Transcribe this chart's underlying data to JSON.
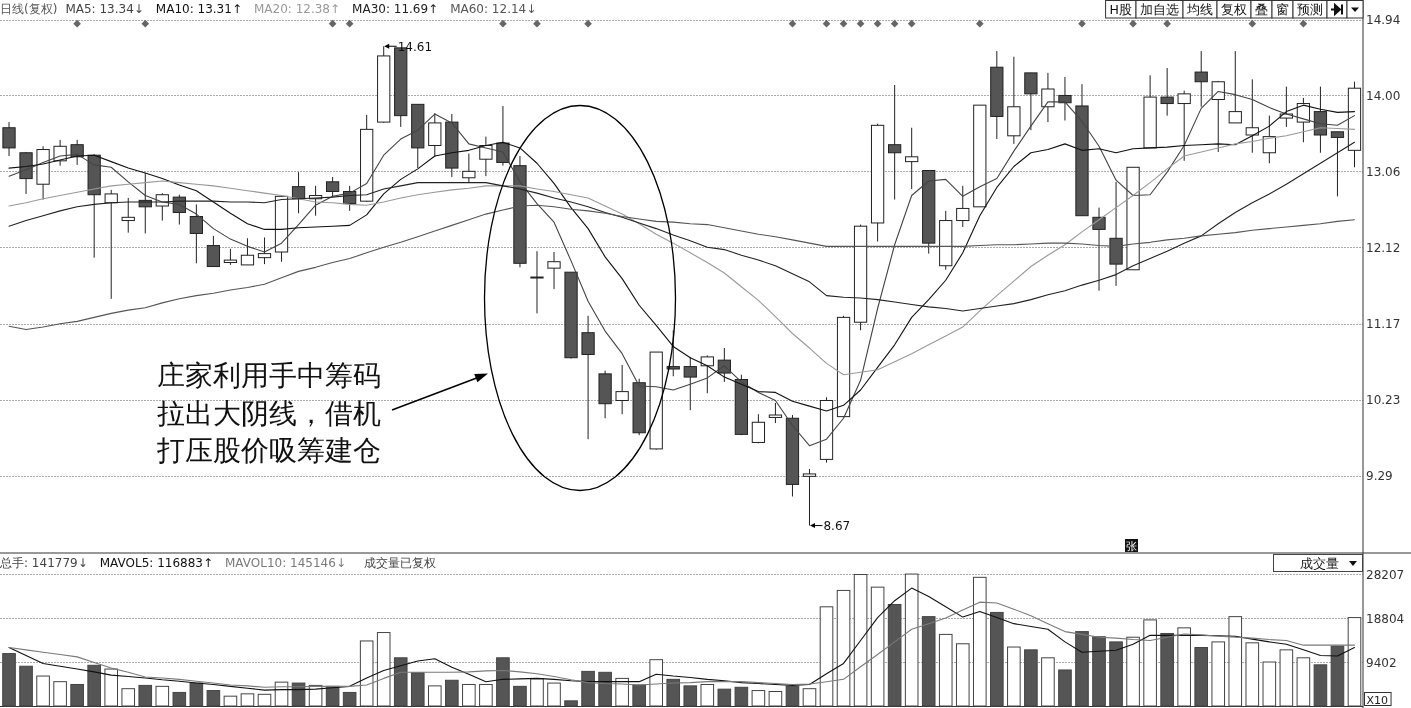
{
  "chart_data": [
    {
      "type": "candlestick",
      "title": "日线(复权)",
      "categories": [
        null,
        null,
        null,
        null,
        null,
        null,
        null,
        null,
        null,
        null,
        null,
        null,
        null,
        null,
        null,
        null,
        null,
        null,
        null,
        null,
        null,
        null,
        null,
        null,
        null,
        null,
        null,
        null,
        null,
        null,
        null,
        null,
        null,
        null,
        null,
        null,
        null,
        null,
        null,
        null,
        null,
        null,
        null,
        null,
        null,
        null,
        null,
        null,
        null,
        null,
        null,
        null,
        null,
        null,
        null,
        null,
        null,
        null,
        null,
        null,
        null,
        null,
        null,
        null,
        null,
        null,
        null,
        null,
        null,
        null,
        null,
        null,
        null,
        null,
        null,
        null,
        null,
        null,
        null,
        null
      ],
      "ohlc": [
        [
          13.6,
          13.67,
          13.25,
          13.35
        ],
        [
          13.29,
          13.3,
          12.78,
          12.97
        ],
        [
          12.9,
          13.37,
          12.71,
          13.33
        ],
        [
          13.19,
          13.45,
          13.13,
          13.37
        ],
        [
          13.39,
          13.45,
          13.14,
          13.24
        ],
        [
          13.26,
          13.27,
          11.99,
          12.77
        ],
        [
          12.67,
          12.83,
          11.48,
          12.78
        ],
        [
          12.45,
          12.73,
          12.3,
          12.49
        ],
        [
          12.7,
          13.04,
          12.29,
          12.62
        ],
        [
          12.63,
          12.79,
          12.45,
          12.77
        ],
        [
          12.74,
          12.77,
          12.4,
          12.55
        ],
        [
          12.5,
          12.65,
          11.92,
          12.29
        ],
        [
          12.14,
          12.26,
          11.88,
          11.88
        ],
        [
          11.93,
          12.1,
          11.9,
          11.96
        ],
        [
          11.9,
          12.23,
          11.9,
          12.02
        ],
        [
          11.99,
          12.24,
          11.91,
          12.04
        ],
        [
          12.06,
          12.76,
          11.94,
          12.75
        ],
        [
          12.87,
          13.05,
          12.54,
          12.72
        ],
        [
          12.72,
          12.88,
          12.51,
          12.76
        ],
        [
          12.93,
          12.99,
          12.75,
          12.81
        ],
        [
          12.81,
          12.88,
          12.57,
          12.66
        ],
        [
          12.69,
          13.76,
          12.68,
          13.58
        ],
        [
          13.67,
          14.61,
          13.66,
          14.49
        ],
        [
          14.59,
          14.59,
          13.61,
          13.75
        ],
        [
          13.89,
          13.89,
          13.1,
          13.35
        ],
        [
          13.38,
          13.78,
          13.24,
          13.66
        ],
        [
          13.67,
          13.77,
          12.99,
          13.1
        ],
        [
          12.98,
          13.28,
          12.92,
          13.06
        ],
        [
          13.21,
          13.49,
          13.0,
          13.38
        ],
        [
          13.41,
          13.87,
          13.13,
          13.17
        ],
        [
          13.13,
          13.25,
          11.87,
          11.92
        ],
        [
          11.74,
          12.07,
          11.3,
          11.75
        ],
        [
          11.86,
          12.06,
          11.6,
          11.94
        ],
        [
          11.81,
          11.81,
          10.74,
          10.75
        ],
        [
          11.06,
          11.27,
          9.74,
          10.79
        ],
        [
          10.55,
          10.59,
          10.0,
          10.18
        ],
        [
          10.22,
          10.66,
          10.05,
          10.33
        ],
        [
          10.44,
          10.49,
          9.79,
          9.82
        ],
        [
          9.62,
          10.82,
          9.61,
          10.82
        ],
        [
          10.64,
          11.09,
          10.52,
          10.61
        ],
        [
          10.64,
          10.76,
          10.1,
          10.51
        ],
        [
          10.65,
          10.78,
          10.31,
          10.76
        ],
        [
          10.72,
          10.87,
          10.45,
          10.56
        ],
        [
          10.48,
          10.54,
          9.79,
          9.8
        ],
        [
          9.7,
          10.05,
          9.69,
          9.95
        ],
        [
          10.01,
          10.19,
          9.94,
          10.04
        ],
        [
          10.0,
          10.04,
          9.03,
          9.18
        ],
        [
          9.28,
          9.37,
          8.67,
          9.31
        ],
        [
          9.49,
          10.26,
          9.45,
          10.22
        ],
        [
          10.02,
          11.27,
          10.01,
          11.25
        ],
        [
          11.19,
          12.4,
          11.09,
          12.38
        ],
        [
          12.42,
          13.65,
          12.19,
          13.63
        ],
        [
          13.39,
          14.13,
          12.71,
          13.29
        ],
        [
          13.18,
          13.6,
          12.84,
          13.24
        ],
        [
          13.07,
          13.07,
          12.04,
          12.17
        ],
        [
          11.89,
          12.57,
          11.84,
          12.45
        ],
        [
          12.45,
          12.88,
          12.37,
          12.6
        ],
        [
          12.62,
          13.88,
          12.62,
          13.88
        ],
        [
          14.35,
          14.55,
          13.46,
          13.74
        ],
        [
          13.5,
          14.48,
          13.4,
          13.86
        ],
        [
          14.28,
          14.28,
          13.57,
          14.02
        ],
        [
          13.86,
          14.28,
          13.67,
          14.08
        ],
        [
          14.0,
          14.23,
          13.69,
          13.91
        ],
        [
          13.87,
          14.14,
          12.51,
          12.51
        ],
        [
          12.49,
          12.61,
          11.58,
          12.34
        ],
        [
          12.23,
          12.93,
          11.64,
          11.91
        ],
        [
          11.84,
          13.11,
          11.84,
          13.11
        ],
        [
          13.35,
          14.25,
          13.35,
          13.98
        ],
        [
          13.98,
          14.34,
          13.75,
          13.9
        ],
        [
          13.9,
          14.06,
          13.19,
          14.02
        ],
        [
          14.29,
          14.55,
          13.86,
          14.17
        ],
        [
          13.95,
          14.18,
          13.3,
          14.17
        ],
        [
          13.66,
          14.55,
          13.66,
          13.8
        ],
        [
          13.51,
          14.2,
          13.29,
          13.6
        ],
        [
          13.29,
          13.75,
          13.16,
          13.49
        ],
        [
          13.72,
          14.11,
          13.61,
          13.77
        ],
        [
          13.67,
          13.97,
          13.42,
          13.9
        ],
        [
          13.8,
          14.11,
          13.29,
          13.51
        ],
        [
          13.55,
          13.55,
          12.75,
          13.48
        ],
        [
          13.32,
          14.17,
          13.11,
          14.09
        ]
      ],
      "colors": [
        "#555555",
        "#555555",
        "#ffffff",
        "#ffffff",
        "#555555",
        "#555555",
        "#ffffff",
        "#ffffff",
        "#555555",
        "#ffffff",
        "#555555",
        "#555555",
        "#555555",
        "#ffffff",
        "#ffffff",
        "#ffffff",
        "#ffffff",
        "#555555",
        "#ffffff",
        "#555555",
        "#555555",
        "#ffffff",
        "#ffffff",
        "#555555",
        "#555555",
        "#ffffff",
        "#555555",
        "#ffffff",
        "#ffffff",
        "#555555",
        "#555555",
        "#ffffff",
        "#ffffff",
        "#555555",
        "#555555",
        "#555555",
        "#ffffff",
        "#555555",
        "#ffffff",
        "#555555",
        "#555555",
        "#ffffff",
        "#555555",
        "#555555",
        "#ffffff",
        "#ffffff",
        "#555555",
        "#ffffff",
        "#ffffff",
        "#ffffff",
        "#ffffff",
        "#ffffff",
        "#555555",
        "#ffffff",
        "#555555",
        "#ffffff",
        "#ffffff",
        "#ffffff",
        "#555555",
        "#ffffff",
        "#555555",
        "#ffffff",
        "#555555",
        "#555555",
        "#555555",
        "#555555",
        "#ffffff",
        "#ffffff",
        "#555555",
        "#ffffff",
        "#555555",
        "#ffffff",
        "#ffffff",
        "#ffffff",
        "#ffffff",
        "#ffffff",
        "#ffffff",
        "#555555",
        "#555555",
        "#ffffff"
      ],
      "series": [
        {
          "name": "MA5: 13.34↓",
          "type": "line",
          "color": "#444444",
          "values": [
            13.0,
            13.08,
            13.17,
            13.25,
            13.27,
            13.14,
            13.11,
            12.93,
            12.76,
            12.68,
            12.65,
            12.53,
            12.35,
            12.22,
            12.13,
            12.06,
            12.17,
            12.4,
            12.64,
            12.75,
            12.79,
            12.91,
            13.26,
            13.46,
            13.57,
            13.77,
            13.66,
            13.4,
            13.35,
            13.3,
            12.93,
            12.66,
            12.43,
            11.95,
            11.45,
            11.08,
            10.8,
            10.4,
            10.39,
            10.35,
            10.42,
            10.5,
            10.65,
            10.45,
            10.32,
            10.22,
            9.91,
            9.66,
            9.74,
            10.0,
            10.47,
            11.36,
            12.15,
            12.76,
            12.94,
            12.96,
            12.75,
            12.87,
            12.97,
            13.31,
            13.62,
            13.92,
            13.92,
            13.68,
            13.37,
            12.95,
            12.76,
            12.77,
            13.05,
            13.38,
            13.84,
            14.05,
            14.01,
            13.95,
            13.85,
            13.77,
            13.71,
            13.65,
            13.63,
            13.75
          ]
        },
        {
          "name": "MA10: 13.31↑",
          "type": "line",
          "color": "#111111",
          "values": [
            13.1,
            13.12,
            13.15,
            13.2,
            13.25,
            13.26,
            13.18,
            13.1,
            13.04,
            12.97,
            12.89,
            12.82,
            12.68,
            12.54,
            12.41,
            12.34,
            12.34,
            12.36,
            12.37,
            12.38,
            12.39,
            12.52,
            12.78,
            12.96,
            13.09,
            13.25,
            13.29,
            13.32,
            13.38,
            13.42,
            13.35,
            13.16,
            12.91,
            12.61,
            12.35,
            12.0,
            11.73,
            11.4,
            11.15,
            10.89,
            10.75,
            10.65,
            10.51,
            10.42,
            10.33,
            10.32,
            10.21,
            10.15,
            10.09,
            10.16,
            10.35,
            10.63,
            10.91,
            11.25,
            11.47,
            11.71,
            12.05,
            12.51,
            12.86,
            13.12,
            13.29,
            13.33,
            13.4,
            13.32,
            13.34,
            13.29,
            13.34,
            13.35,
            13.36,
            13.38,
            13.39,
            13.4,
            13.39,
            13.5,
            13.62,
            13.8,
            13.88,
            13.83,
            13.79,
            13.8
          ]
        },
        {
          "name": "MA20: 12.38↑",
          "type": "line",
          "color": "#999999",
          "values": [
            12.63,
            12.67,
            12.72,
            12.76,
            12.8,
            12.84,
            12.88,
            12.9,
            12.92,
            12.94,
            12.92,
            12.9,
            12.88,
            12.85,
            12.82,
            12.79,
            12.76,
            12.72,
            12.68,
            12.67,
            12.65,
            12.64,
            12.68,
            12.73,
            12.77,
            12.8,
            12.83,
            12.85,
            12.88,
            12.88,
            12.88,
            12.84,
            12.81,
            12.77,
            12.73,
            12.63,
            12.53,
            12.41,
            12.28,
            12.17,
            12.05,
            11.93,
            11.8,
            11.63,
            11.46,
            11.26,
            11.05,
            10.87,
            10.68,
            10.54,
            10.57,
            10.6,
            10.7,
            10.8,
            10.91,
            11.02,
            11.13,
            11.33,
            11.52,
            11.7,
            11.88,
            12.02,
            12.15,
            12.31,
            12.46,
            12.61,
            12.76,
            12.92,
            13.09,
            13.25,
            13.3,
            13.35,
            13.4,
            13.43,
            13.47,
            13.5,
            13.55,
            13.6,
            13.59,
            13.58
          ]
        },
        {
          "name": "MA30: 11.69↑",
          "type": "line",
          "color": "#222222",
          "values": [
            12.38,
            12.45,
            12.51,
            12.57,
            12.62,
            12.65,
            12.67,
            12.68,
            12.68,
            12.68,
            12.69,
            12.69,
            12.69,
            12.68,
            12.68,
            12.67,
            12.71,
            12.72,
            12.73,
            12.74,
            12.76,
            12.77,
            12.84,
            12.88,
            12.92,
            12.92,
            12.92,
            12.92,
            12.92,
            12.88,
            12.84,
            12.79,
            12.73,
            12.68,
            12.62,
            12.55,
            12.49,
            12.42,
            12.35,
            12.27,
            12.2,
            12.12,
            12.09,
            12.02,
            11.96,
            11.89,
            11.79,
            11.69,
            11.52,
            11.5,
            11.49,
            11.47,
            11.44,
            11.41,
            11.38,
            11.36,
            11.33,
            11.36,
            11.39,
            11.42,
            11.47,
            11.53,
            11.58,
            11.65,
            11.71,
            11.78,
            11.89,
            11.98,
            12.07,
            12.17,
            12.26,
            12.41,
            12.55,
            12.67,
            12.78,
            12.9,
            13.03,
            13.16,
            13.29,
            13.42
          ]
        },
        {
          "name": "MA60: 12.14↓",
          "type": "line",
          "color": "#555555",
          "values": [
            11.14,
            11.1,
            11.13,
            11.17,
            11.2,
            11.25,
            11.3,
            11.34,
            11.37,
            11.43,
            11.48,
            11.52,
            11.55,
            11.59,
            11.62,
            11.66,
            11.74,
            11.82,
            11.87,
            11.93,
            11.98,
            12.05,
            12.12,
            12.18,
            12.25,
            12.32,
            12.39,
            12.46,
            12.53,
            12.58,
            12.63,
            12.64,
            12.62,
            12.59,
            12.57,
            12.54,
            12.5,
            12.47,
            12.44,
            12.43,
            12.41,
            12.4,
            12.36,
            12.32,
            12.28,
            12.25,
            12.21,
            12.17,
            12.13,
            12.13,
            12.13,
            12.13,
            12.13,
            12.13,
            12.13,
            12.13,
            12.13,
            12.14,
            12.15,
            12.15,
            12.16,
            12.17,
            12.17,
            12.16,
            12.14,
            12.13,
            12.16,
            12.18,
            12.21,
            12.23,
            12.26,
            12.28,
            12.3,
            12.33,
            12.35,
            12.37,
            12.39,
            12.41,
            12.44,
            12.46
          ]
        },
        {
          "type": "scatter",
          "marker": "diamond",
          "color": "#666666",
          "values": [
            null,
            null,
            null,
            null,
            14.89,
            null,
            null,
            null,
            14.89,
            null,
            null,
            null,
            null,
            null,
            null,
            null,
            null,
            null,
            null,
            14.89,
            14.89,
            null,
            null,
            null,
            null,
            null,
            null,
            null,
            null,
            14.89,
            null,
            14.89,
            null,
            null,
            14.89,
            null,
            null,
            null,
            null,
            null,
            null,
            null,
            null,
            null,
            null,
            null,
            14.89,
            null,
            14.89,
            14.89,
            14.89,
            14.89,
            14.89,
            14.89,
            null,
            null,
            null,
            14.89,
            null,
            null,
            null,
            null,
            null,
            14.89,
            null,
            null,
            14.89,
            null,
            14.89,
            null,
            null,
            null,
            null,
            14.89,
            null,
            null,
            14.89,
            null,
            null,
            null
          ]
        }
      ],
      "ylim": [
        8.33,
        14.96
      ],
      "yticks": [
        14.94,
        {
          "value": 14,
          "label": "14.00"
        },
        13.06,
        12.12,
        11.17,
        10.23,
        9.29
      ],
      "grid": "y",
      "legend": "top left",
      "annotations": [
        "14.61",
        "8.67",
        "庄家利用手中筹码拉出大阴线，借机打压股价吸筹建仓",
        "张"
      ]
    },
    {
      "type": "bar",
      "categories": [
        null,
        null,
        null,
        null,
        null,
        null,
        null,
        null,
        null,
        null,
        null,
        null,
        null,
        null,
        null,
        null,
        null,
        null,
        null,
        null,
        null,
        null,
        null,
        null,
        null,
        null,
        null,
        null,
        null,
        null,
        null,
        null,
        null,
        null,
        null,
        null,
        null,
        null,
        null,
        null,
        null,
        null,
        null,
        null,
        null,
        null,
        null,
        null,
        null,
        null,
        null,
        null,
        null,
        null,
        null,
        null,
        null,
        null,
        null,
        null,
        null,
        null,
        null,
        null,
        null,
        null,
        null,
        null,
        null,
        null,
        null,
        null,
        null,
        null,
        null,
        null,
        null,
        null,
        null,
        null
      ],
      "series": [
        {
          "name": "总手: 141779↓",
          "color": "#444444",
          "colors": [
            "#555555",
            "#555555",
            "#ffffff",
            "#ffffff",
            "#555555",
            "#555555",
            "#ffffff",
            "#ffffff",
            "#555555",
            "#ffffff",
            "#555555",
            "#555555",
            "#555555",
            "#ffffff",
            "#ffffff",
            "#ffffff",
            "#ffffff",
            "#555555",
            "#ffffff",
            "#555555",
            "#555555",
            "#ffffff",
            "#ffffff",
            "#555555",
            "#555555",
            "#ffffff",
            "#555555",
            "#ffffff",
            "#ffffff",
            "#555555",
            "#555555",
            "#ffffff",
            "#ffffff",
            "#555555",
            "#555555",
            "#555555",
            "#ffffff",
            "#555555",
            "#ffffff",
            "#555555",
            "#555555",
            "#ffffff",
            "#555555",
            "#555555",
            "#ffffff",
            "#ffffff",
            "#555555",
            "#ffffff",
            "#ffffff",
            "#ffffff",
            "#ffffff",
            "#ffffff",
            "#555555",
            "#ffffff",
            "#555555",
            "#ffffff",
            "#ffffff",
            "#ffffff",
            "#555555",
            "#ffffff",
            "#555555",
            "#ffffff",
            "#555555",
            "#555555",
            "#555555",
            "#555555",
            "#ffffff",
            "#ffffff",
            "#555555",
            "#ffffff",
            "#555555",
            "#ffffff",
            "#ffffff",
            "#ffffff",
            "#ffffff",
            "#ffffff",
            "#ffffff",
            "#555555",
            "#555555",
            "#ffffff"
          ],
          "values": [
            11200,
            8500,
            6400,
            5200,
            4600,
            8700,
            7900,
            3700,
            4400,
            4200,
            2900,
            4900,
            3300,
            2100,
            2600,
            2500,
            5100,
            4900,
            4400,
            4200,
            2900,
            13900,
            15700,
            10300,
            7100,
            4300,
            5500,
            4600,
            4600,
            10300,
            4200,
            5800,
            4900,
            1100,
            7400,
            7200,
            5900,
            4500,
            9900,
            5700,
            4300,
            4600,
            3600,
            4000,
            3300,
            3100,
            4200,
            3700,
            21200,
            24700,
            28100,
            25400,
            21700,
            28200,
            19100,
            15300,
            13300,
            27500,
            20000,
            12600,
            12000,
            10300,
            7700,
            15900,
            14800,
            13700,
            14700,
            18400,
            15500,
            16700,
            12500,
            13700,
            19100,
            13500,
            9400,
            12000,
            10300,
            8800,
            12800,
            18900
          ]
        },
        {
          "name": "MAVOL5: 116883↑",
          "type": "line",
          "color": "#111111",
          "values": [
            12500,
            10800,
            9100,
            8500,
            7900,
            7300,
            6600,
            6300,
            6000,
            5600,
            5300,
            4900,
            4600,
            4200,
            3800,
            3400,
            3500,
            3500,
            3600,
            3900,
            4200,
            6000,
            7600,
            8600,
            9600,
            10100,
            8300,
            6800,
            5200,
            5700,
            5800,
            5900,
            5700,
            5400,
            5200,
            5200,
            5200,
            5200,
            6800,
            6400,
            6100,
            5700,
            5400,
            5000,
            4800,
            4600,
            4400,
            4600,
            6900,
            9100,
            14000,
            18900,
            22500,
            25200,
            23400,
            21200,
            19000,
            20200,
            18900,
            17600,
            17000,
            16400,
            13700,
            11500,
            11700,
            11900,
            13200,
            15100,
            15100,
            15100,
            15100,
            15000,
            14900,
            14300,
            13700,
            13200,
            12000,
            10800,
            10700,
            12500
          ]
        },
        {
          "name": "MAVOL10: 145146↓",
          "type": "line",
          "color": "#7a7a7a",
          "values": [
            12500,
            12000,
            11500,
            11000,
            10500,
            9300,
            8100,
            7200,
            6200,
            6000,
            5700,
            5300,
            4900,
            4500,
            4300,
            4000,
            4100,
            4100,
            4200,
            4200,
            4200,
            4500,
            5900,
            7200,
            7200,
            7200,
            7200,
            7300,
            7500,
            7600,
            7300,
            6900,
            6300,
            5600,
            5000,
            4800,
            4700,
            4500,
            4700,
            4900,
            5000,
            5200,
            5200,
            5200,
            5000,
            4800,
            4600,
            4700,
            5200,
            5700,
            8400,
            11000,
            13700,
            16400,
            17600,
            18800,
            20500,
            22200,
            22000,
            20700,
            19300,
            17600,
            15900,
            15300,
            14700,
            14500,
            14200,
            14000,
            14700,
            15400,
            15200,
            14900,
            14700,
            14500,
            14200,
            14000,
            13000,
            13000,
            13000,
            13000
          ]
        }
      ],
      "ylim": [
        0,
        32700
      ],
      "yticks": [
        9402,
        18804,
        28207
      ],
      "ylabel": "X10",
      "grid": "y",
      "legend": "top left",
      "annotations": [
        "成交量已复权",
        "成交量"
      ]
    },
    {
      "type": "other",
      "annotations": [
        "H股",
        "加自选",
        "均线",
        "复权",
        "叠",
        "窗",
        "预测"
      ]
    }
  ]
}
